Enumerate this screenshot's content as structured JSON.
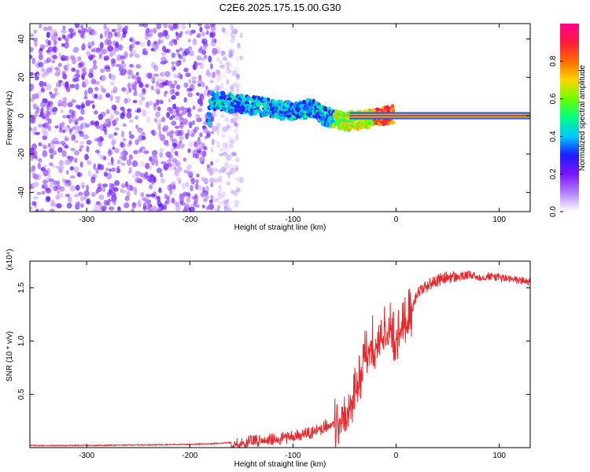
{
  "page": {
    "title": "C2E6.2025.175.15.00.G30"
  },
  "colors": {
    "trace": "#e8282c",
    "axis": "#000000",
    "background": "#ffffff",
    "colormap": [
      "#ffffff",
      "#b37fff",
      "#7a14ff",
      "#1c1cff",
      "#00c8ff",
      "#00ff80",
      "#6cff00",
      "#ffd400",
      "#ff6a00",
      "#ff1a3c",
      "#ff008c"
    ]
  },
  "chart_data": [
    {
      "type": "heatmap",
      "title": "C2E6.2025.175.15.00.G30",
      "xlabel": "Height of straight line (km)",
      "ylabel": "Frequency (Hz)",
      "xlim": [
        -355,
        130
      ],
      "ylim": [
        -50,
        48
      ],
      "x_ticks": [
        -300,
        -200,
        -100,
        0,
        100
      ],
      "y_ticks": [
        -40,
        -20,
        0,
        20,
        40
      ],
      "grid": false,
      "colorbar": {
        "label": "Normalized spectral amplitude",
        "range": [
          0,
          1
        ],
        "ticks": [
          0.0,
          0.2,
          0.4,
          0.6,
          0.8
        ]
      },
      "features": [
        {
          "description": "diffuse noise",
          "x_range": [
            -355,
            -175
          ],
          "y_range": [
            -50,
            48
          ],
          "amplitude": 0.1
        },
        {
          "description": "carrier trace",
          "points": [
            [
              -180,
              8
            ],
            [
              -150,
              6
            ],
            [
              -120,
              4
            ],
            [
              -100,
              2
            ],
            [
              -80,
              4
            ],
            [
              -70,
              0
            ],
            [
              -55,
              -2
            ],
            [
              -45,
              -3
            ],
            [
              -30,
              -2
            ],
            [
              -15,
              0
            ],
            [
              0,
              1
            ],
            [
              50,
              0
            ],
            [
              100,
              0
            ],
            [
              130,
              0
            ]
          ]
        },
        {
          "description": "central peak band",
          "x_range": [
            -45,
            130
          ],
          "center": 0,
          "amplitude": 0.95
        }
      ]
    },
    {
      "type": "line",
      "xlabel": "Height of straight line (km)",
      "ylabel": "SNR (10 * v/v)",
      "y_multiplier": "(x10⁴)",
      "xlim": [
        -355,
        130
      ],
      "ylim": [
        0,
        1.75
      ],
      "x_ticks": [
        -300,
        -200,
        -100,
        0,
        100
      ],
      "y_ticks": [
        0.5,
        1.0,
        1.5
      ],
      "y_tick_labels": [
        "0.5",
        "1.0",
        "1.5"
      ],
      "grid": false,
      "series": [
        {
          "x": [
            -355,
            -300,
            -250,
            -200,
            -170,
            -150,
            -130,
            -110,
            -100,
            -90,
            -80,
            -70,
            -60,
            -50,
            -45,
            -40,
            -35,
            -30,
            -25,
            -20,
            -15,
            -10,
            -5,
            0,
            5,
            10,
            15,
            20,
            30,
            40,
            50,
            60,
            70,
            80,
            90,
            100,
            110,
            120,
            130
          ],
          "values": [
            0.02,
            0.02,
            0.025,
            0.03,
            0.04,
            0.06,
            0.08,
            0.1,
            0.12,
            0.14,
            0.16,
            0.2,
            0.25,
            0.35,
            0.42,
            0.55,
            0.7,
            0.9,
            1.05,
            1.0,
            1.1,
            1.2,
            1.15,
            1.0,
            1.2,
            1.25,
            1.3,
            1.45,
            1.52,
            1.57,
            1.6,
            1.6,
            1.62,
            1.6,
            1.61,
            1.6,
            1.58,
            1.57,
            1.56
          ]
        }
      ]
    }
  ]
}
